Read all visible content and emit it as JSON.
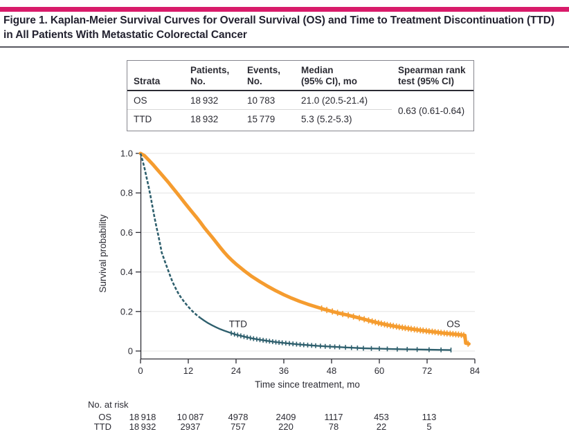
{
  "colors": {
    "accent_bar": "#D81B6A",
    "os_orange": "#F59C2F",
    "ttd_teal": "#2E5F6D",
    "gridline": "#E4E4E4",
    "axis": "#2B2B33"
  },
  "header": {
    "title_line1": "Figure 1. Kaplan-Meier Survival Curves for Overall Survival (OS) and Time to Treatment Discontinuation (TTD)",
    "title_line2": "in All Patients With Metastatic Colorectal Cancer"
  },
  "stats_table": {
    "headers": [
      [
        "Strata"
      ],
      [
        "Patients,",
        "No."
      ],
      [
        "Events,",
        "No."
      ],
      [
        "Median",
        "(95% CI), mo"
      ],
      [
        "Spearman rank",
        "test (95% CI)"
      ]
    ],
    "rows": [
      {
        "strata": "OS",
        "patients": "18 932",
        "events": "10 783",
        "median": "21.0 (20.5-21.4)"
      },
      {
        "strata": "TTD",
        "patients": "18 932",
        "events": "15 779",
        "median": "5.3 (5.2-5.3)"
      }
    ],
    "spearman": "0.63 (0.61-0.64)"
  },
  "chart_data": {
    "type": "line",
    "subtype": "kaplan-meier",
    "xlabel": "Time since treatment, mo",
    "ylabel": "Survival probability",
    "xlim": [
      0,
      84
    ],
    "ylim": [
      0,
      1.0
    ],
    "xticks": [
      0,
      12,
      24,
      36,
      48,
      60,
      72,
      84
    ],
    "yticks": [
      0,
      0.2,
      0.4,
      0.6,
      0.8,
      1.0
    ],
    "ytick_labels": [
      "0",
      "0.2",
      "0.4",
      "0.6",
      "0.8",
      "1.0"
    ],
    "grid": "horizontal",
    "legend": "curve labels inline",
    "series": [
      {
        "name": "OS",
        "color": "#F59C2F",
        "width": 5,
        "median_mo": 21.0,
        "label_pos": [
          78.6,
          0.135
        ],
        "points": [
          [
            0,
            1.0
          ],
          [
            1,
            0.988
          ],
          [
            2,
            0.968
          ],
          [
            3,
            0.946
          ],
          [
            4,
            0.923
          ],
          [
            5,
            0.9
          ],
          [
            6,
            0.877
          ],
          [
            7,
            0.853
          ],
          [
            8,
            0.828
          ],
          [
            9,
            0.803
          ],
          [
            10,
            0.778
          ],
          [
            11,
            0.752
          ],
          [
            12,
            0.727
          ],
          [
            13,
            0.702
          ],
          [
            14,
            0.678
          ],
          [
            15,
            0.652
          ],
          [
            16,
            0.625
          ],
          [
            17,
            0.6
          ],
          [
            18,
            0.576
          ],
          [
            19,
            0.55
          ],
          [
            20,
            0.525
          ],
          [
            21,
            0.5
          ],
          [
            22,
            0.478
          ],
          [
            23,
            0.458
          ],
          [
            24,
            0.44
          ],
          [
            26,
            0.407
          ],
          [
            28,
            0.377
          ],
          [
            30,
            0.351
          ],
          [
            32,
            0.327
          ],
          [
            34,
            0.305
          ],
          [
            36,
            0.285
          ],
          [
            38,
            0.267
          ],
          [
            40,
            0.251
          ],
          [
            42,
            0.237
          ],
          [
            44,
            0.224
          ],
          [
            46,
            0.212
          ],
          [
            48,
            0.201
          ],
          [
            50,
            0.191
          ],
          [
            52,
            0.182
          ],
          [
            54,
            0.172
          ],
          [
            56,
            0.162
          ],
          [
            58,
            0.151
          ],
          [
            60,
            0.141
          ],
          [
            62,
            0.132
          ],
          [
            64,
            0.125
          ],
          [
            66,
            0.118
          ],
          [
            68,
            0.112
          ],
          [
            70,
            0.106
          ],
          [
            72,
            0.101
          ],
          [
            74,
            0.096
          ],
          [
            76,
            0.091
          ],
          [
            78,
            0.087
          ],
          [
            80,
            0.083
          ],
          [
            81.5,
            0.079
          ],
          [
            81.7,
            0.04
          ],
          [
            82.5,
            0.036
          ]
        ],
        "censor_months": [
          45.5,
          46.8,
          48.2,
          49.5,
          50.8,
          52.2,
          53.5,
          55,
          56.2,
          57.3,
          58.2,
          59,
          59.8,
          60.5,
          61.3,
          62,
          62.8,
          63.5,
          64.3,
          65,
          65.8,
          66.5,
          67.3,
          68,
          68.8,
          69.5,
          70.3,
          71,
          71.8,
          72.5,
          73.3,
          74,
          74.8,
          75.5,
          76.3,
          77,
          77.8,
          78.5,
          79.2,
          79.9,
          80.6,
          81.2,
          82.3
        ],
        "censor_len": 9
      },
      {
        "name": "TTD",
        "color": "#2E5F6D",
        "width": 2.4,
        "median_mo": 5.3,
        "label_pos": [
          24.5,
          0.135
        ],
        "dash_until": 15,
        "points": [
          [
            0,
            1.0
          ],
          [
            0.5,
            0.965
          ],
          [
            1,
            0.925
          ],
          [
            1.5,
            0.88
          ],
          [
            2,
            0.835
          ],
          [
            2.5,
            0.785
          ],
          [
            3,
            0.73
          ],
          [
            3.5,
            0.678
          ],
          [
            4,
            0.628
          ],
          [
            4.5,
            0.582
          ],
          [
            5,
            0.532
          ],
          [
            5.3,
            0.5
          ],
          [
            6,
            0.46
          ],
          [
            6.5,
            0.432
          ],
          [
            7,
            0.405
          ],
          [
            7.5,
            0.378
          ],
          [
            8,
            0.352
          ],
          [
            8.5,
            0.33
          ],
          [
            9,
            0.31
          ],
          [
            9.5,
            0.292
          ],
          [
            10,
            0.276
          ],
          [
            11,
            0.248
          ],
          [
            12,
            0.224
          ],
          [
            13,
            0.202
          ],
          [
            14,
            0.184
          ],
          [
            15,
            0.168
          ],
          [
            16,
            0.154
          ],
          [
            17,
            0.141
          ],
          [
            18,
            0.13
          ],
          [
            19,
            0.12
          ],
          [
            20,
            0.111
          ],
          [
            21,
            0.103
          ],
          [
            22,
            0.096
          ],
          [
            23,
            0.089
          ],
          [
            24,
            0.083
          ],
          [
            26,
            0.073
          ],
          [
            28,
            0.064
          ],
          [
            30,
            0.057
          ],
          [
            32,
            0.051
          ],
          [
            34,
            0.045
          ],
          [
            36,
            0.041
          ],
          [
            38,
            0.037
          ],
          [
            40,
            0.033
          ],
          [
            42,
            0.03
          ],
          [
            44,
            0.027
          ],
          [
            46,
            0.024
          ],
          [
            48,
            0.022
          ],
          [
            50,
            0.02
          ],
          [
            52,
            0.018
          ],
          [
            54,
            0.016
          ],
          [
            56,
            0.014
          ],
          [
            58,
            0.013
          ],
          [
            60,
            0.012
          ],
          [
            63,
            0.01
          ],
          [
            66,
            0.009
          ],
          [
            69,
            0.008
          ],
          [
            72,
            0.007
          ],
          [
            75,
            0.006
          ],
          [
            78,
            0.005
          ]
        ],
        "censor_months": [
          22.8,
          23.6,
          24.4,
          25.2,
          26,
          26.8,
          27.6,
          28.4,
          29.2,
          30,
          30.8,
          31.6,
          32.4,
          33.2,
          34,
          34.8,
          35.6,
          36.5,
          37.4,
          38.3,
          39.2,
          40.1,
          41,
          42,
          43,
          44,
          45.2,
          46.4,
          47.6,
          48.8,
          50,
          51.5,
          53,
          54.5,
          56,
          58,
          60,
          62,
          64.5,
          67,
          69.5,
          72.5,
          75.5,
          78
        ],
        "censor_len": 7
      }
    ],
    "at_risk": {
      "title": "No. at risk",
      "months": [
        0,
        12,
        24,
        36,
        48,
        60,
        72
      ],
      "rows": [
        {
          "name": "OS",
          "values": [
            "18 918",
            "10 087",
            "4978",
            "2409",
            "1117",
            "453",
            "113"
          ]
        },
        {
          "name": "TTD",
          "values": [
            "18 932",
            "2937",
            "757",
            "220",
            "78",
            "22",
            "5"
          ]
        }
      ]
    }
  }
}
